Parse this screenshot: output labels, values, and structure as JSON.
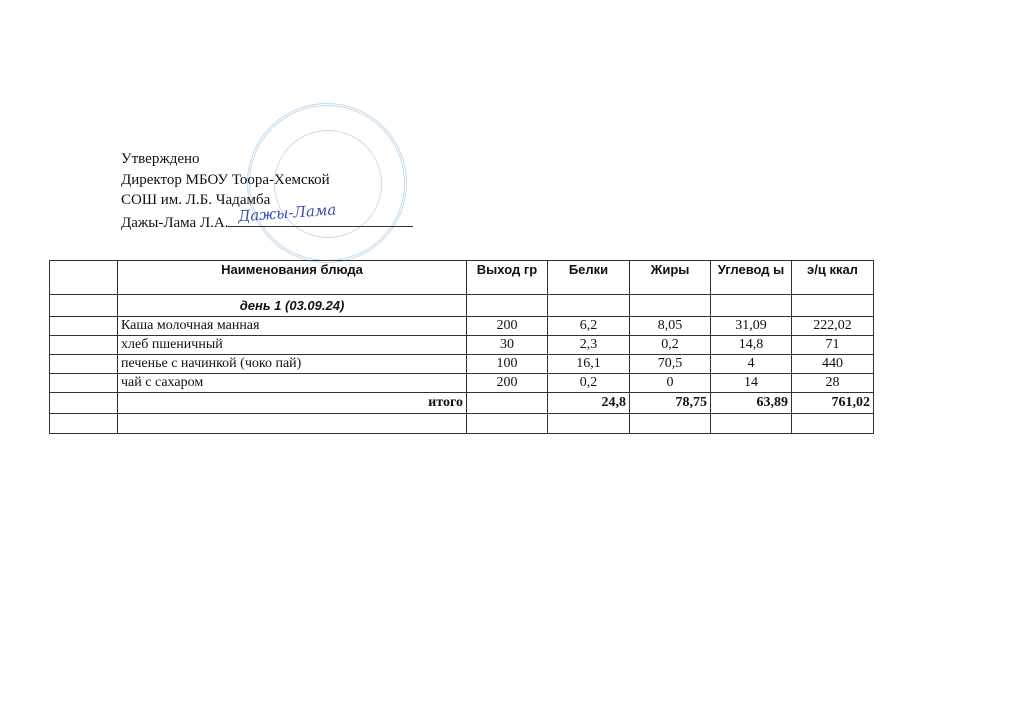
{
  "stamp": {
    "colour": "#7aaad2"
  },
  "approval": {
    "line1": "Утверждено",
    "line2": "Директор МБОУ Тоора-Хемской",
    "line3": "СОШ им. Л.Б. Чадамба",
    "line4": "Дажы-Лама Л.А.",
    "signature": "Дажы-Лама"
  },
  "table": {
    "headers": [
      "",
      "Наименования блюда",
      "Выход гр",
      "Белки",
      "Жиры",
      "Углевод ы",
      "э/ц ккал"
    ],
    "day": "день 1 (03.09.24)",
    "rows": [
      {
        "name": "Каша молочная манная",
        "out": "200",
        "b": "6,2",
        "f": "8,05",
        "c": "31,09",
        "k": "222,02"
      },
      {
        "name": "хлеб пшеничный",
        "out": "30",
        "b": "2,3",
        "f": "0,2",
        "c": "14,8",
        "k": "71"
      },
      {
        "name": "печенье с начинкой (чоко пай)",
        "out": "100",
        "b": "16,1",
        "f": "70,5",
        "c": "4",
        "k": "440"
      },
      {
        "name": "чай с сахаром",
        "out": "200",
        "b": "0,2",
        "f": "0",
        "c": "14",
        "k": "28"
      }
    ],
    "total": {
      "label": "итого",
      "b": "24,8",
      "f": "78,75",
      "c": "63,89",
      "k": "761,02"
    }
  }
}
